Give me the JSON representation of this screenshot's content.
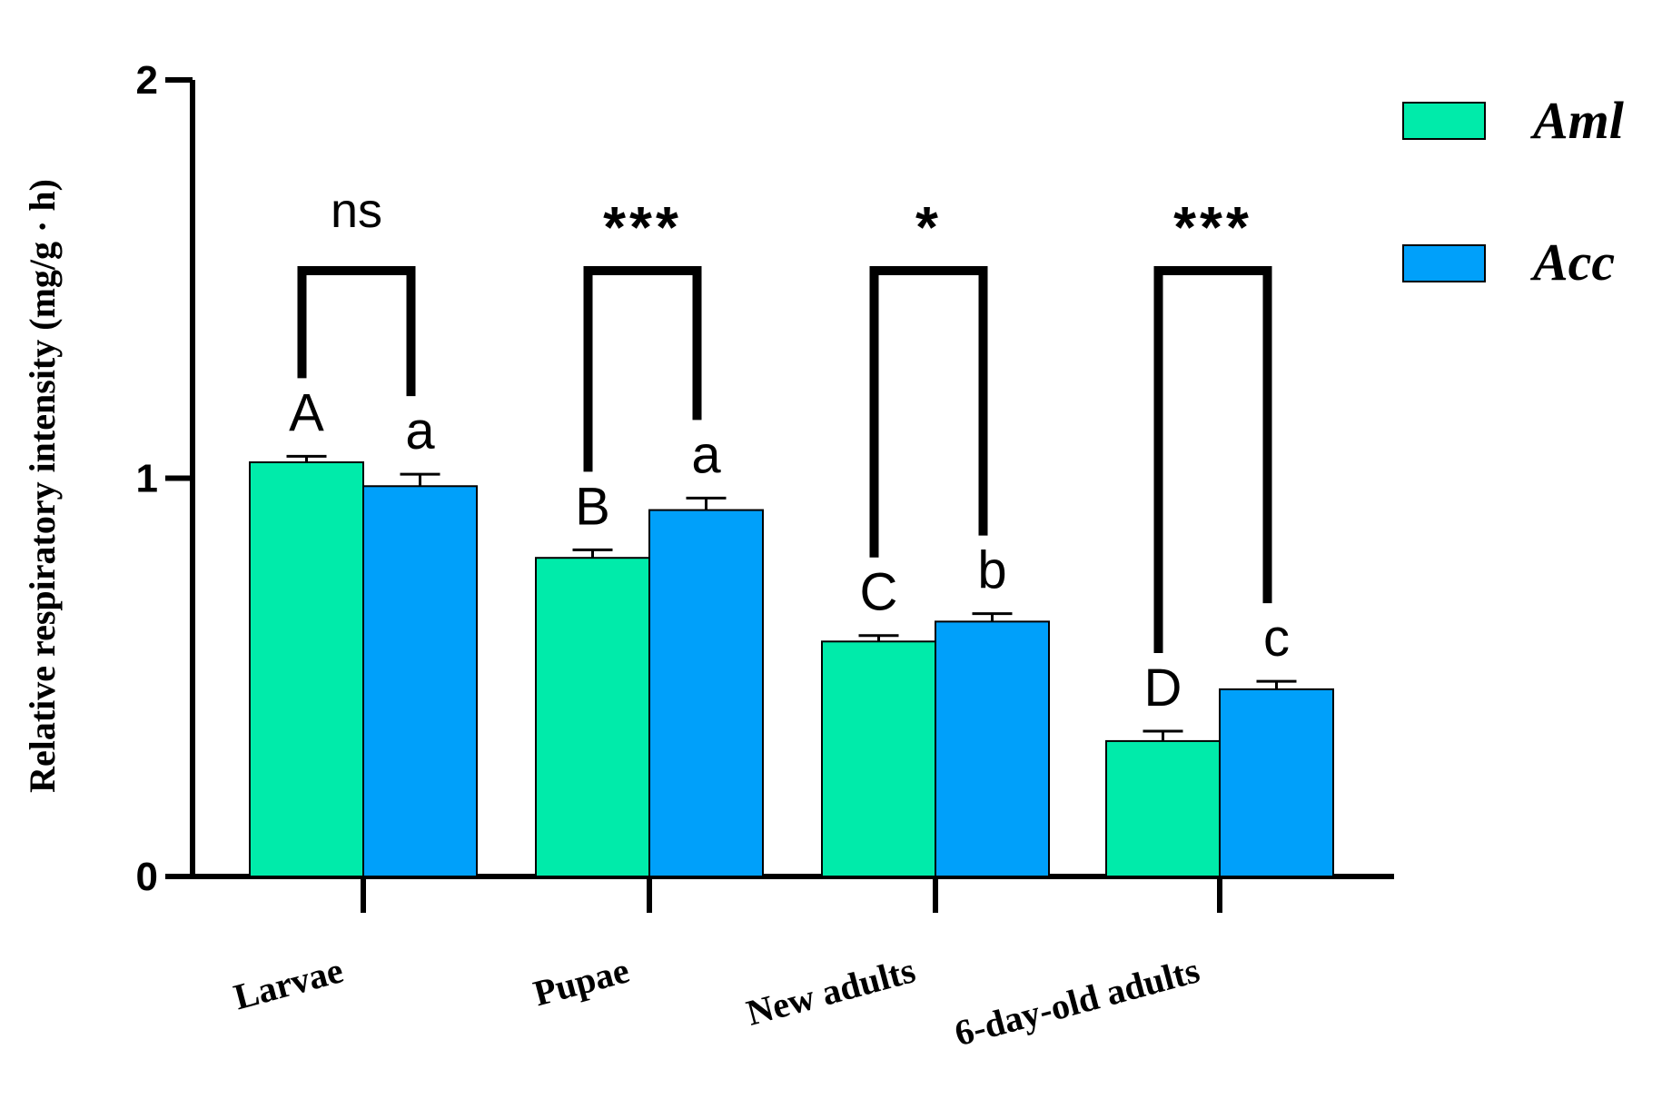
{
  "chart_data": {
    "type": "bar",
    "title": "",
    "ylabel": "Relative respiratory intensity (mg/g · h)",
    "xlabel": "",
    "ylim": [
      0,
      2
    ],
    "yticks": [
      "0",
      "1",
      "2"
    ],
    "categories": [
      "Larvae",
      "Pupae",
      "New adults",
      "6-day-old adults"
    ],
    "series": [
      {
        "name": "Aml",
        "color": "#00EBAA",
        "values": [
          1.04,
          0.8,
          0.59,
          0.34
        ],
        "errors": [
          0.015,
          0.02,
          0.015,
          0.025
        ],
        "letters": [
          "A",
          "B",
          "C",
          "D"
        ]
      },
      {
        "name": "Acc",
        "color": "#00A0FA",
        "values": [
          0.98,
          0.92,
          0.64,
          0.47
        ],
        "errors": [
          0.03,
          0.03,
          0.02,
          0.02
        ],
        "letters": [
          "a",
          "a",
          "b",
          "c"
        ]
      }
    ],
    "significance": [
      "ns",
      "***",
      "*",
      "***"
    ],
    "legend_position": "top-right"
  }
}
